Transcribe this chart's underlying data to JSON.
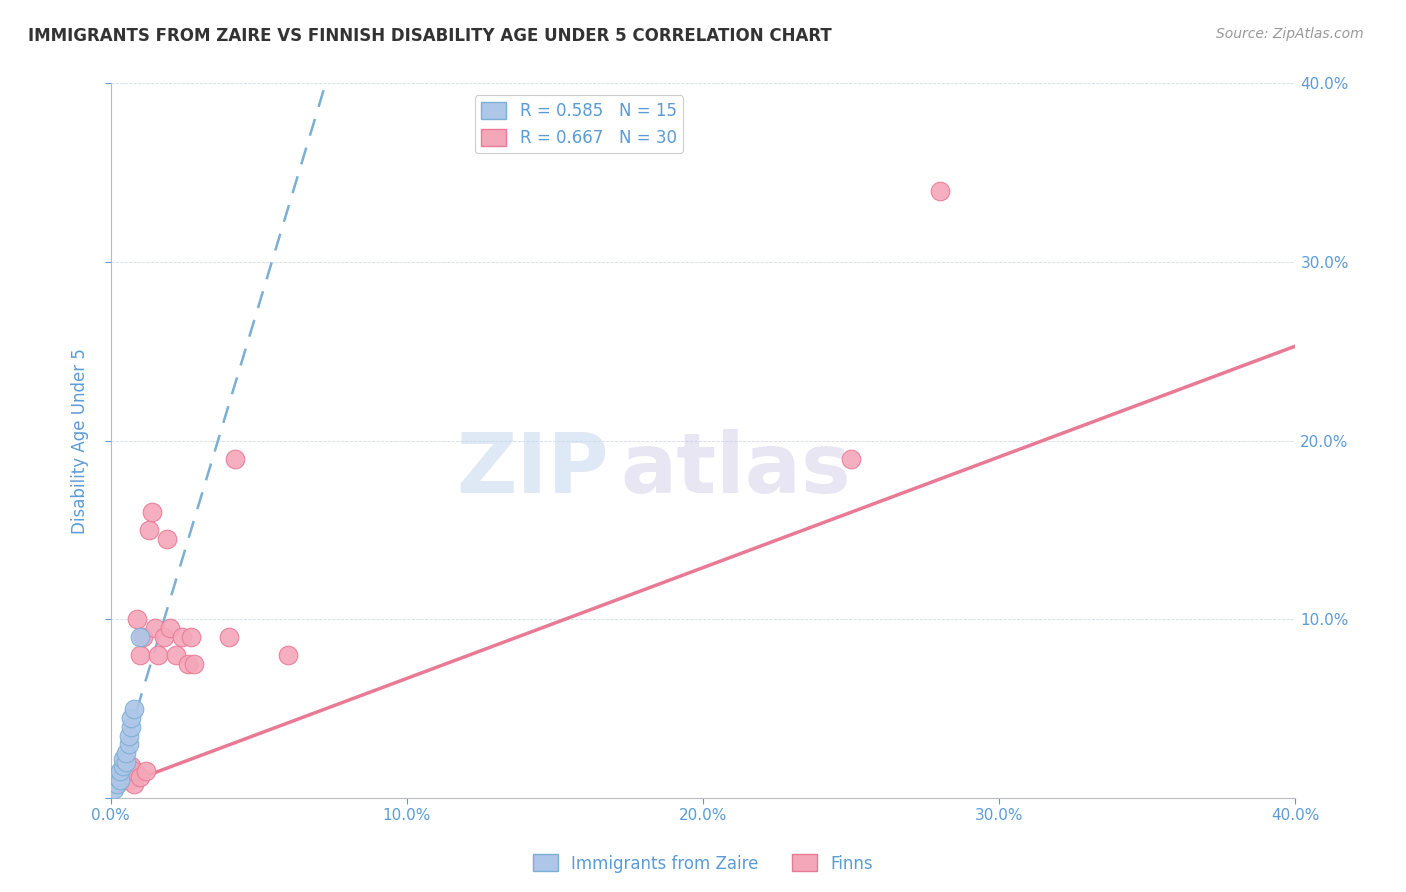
{
  "title": "IMMIGRANTS FROM ZAIRE VS FINNISH DISABILITY AGE UNDER 5 CORRELATION CHART",
  "source": "Source: ZipAtlas.com",
  "ylabel": "Disability Age Under 5",
  "xlim": [
    0.0,
    0.4
  ],
  "ylim": [
    0.0,
    0.4
  ],
  "xticks": [
    0.0,
    0.1,
    0.2,
    0.3,
    0.4
  ],
  "yticks": [
    0.0,
    0.1,
    0.2,
    0.3,
    0.4
  ],
  "xtick_labels": [
    "0.0%",
    "10.0%",
    "20.0%",
    "30.0%",
    "40.0%"
  ],
  "ytick_labels_right": [
    "",
    "10.0%",
    "20.0%",
    "30.0%",
    "40.0%"
  ],
  "blue_r": 0.585,
  "blue_n": 15,
  "pink_r": 0.667,
  "pink_n": 30,
  "blue_color": "#aec6e8",
  "pink_color": "#f4a7b9",
  "blue_line_color": "#7bafd4",
  "pink_line_color": "#e87a96",
  "text_color": "#5b9bd5",
  "watermark_zip": "ZIP",
  "watermark_atlas": "atlas",
  "blue_points_x": [
    0.001,
    0.002,
    0.002,
    0.003,
    0.003,
    0.004,
    0.004,
    0.005,
    0.005,
    0.006,
    0.006,
    0.007,
    0.007,
    0.008,
    0.01
  ],
  "blue_points_y": [
    0.005,
    0.008,
    0.012,
    0.01,
    0.015,
    0.018,
    0.022,
    0.02,
    0.025,
    0.03,
    0.035,
    0.04,
    0.045,
    0.05,
    0.09
  ],
  "pink_points_x": [
    0.002,
    0.003,
    0.004,
    0.005,
    0.006,
    0.007,
    0.008,
    0.008,
    0.009,
    0.01,
    0.01,
    0.011,
    0.012,
    0.013,
    0.014,
    0.015,
    0.016,
    0.018,
    0.019,
    0.02,
    0.022,
    0.024,
    0.026,
    0.027,
    0.028,
    0.04,
    0.042,
    0.06,
    0.25,
    0.28
  ],
  "pink_points_y": [
    0.008,
    0.01,
    0.012,
    0.015,
    0.01,
    0.018,
    0.008,
    0.015,
    0.1,
    0.08,
    0.012,
    0.09,
    0.015,
    0.15,
    0.16,
    0.095,
    0.08,
    0.09,
    0.145,
    0.095,
    0.08,
    0.09,
    0.075,
    0.09,
    0.075,
    0.09,
    0.19,
    0.08,
    0.19,
    0.34
  ],
  "blue_trend_slope": 5.5,
  "blue_trend_intercept": 0.001,
  "pink_trend_slope": 0.62,
  "pink_trend_intercept": 0.005
}
